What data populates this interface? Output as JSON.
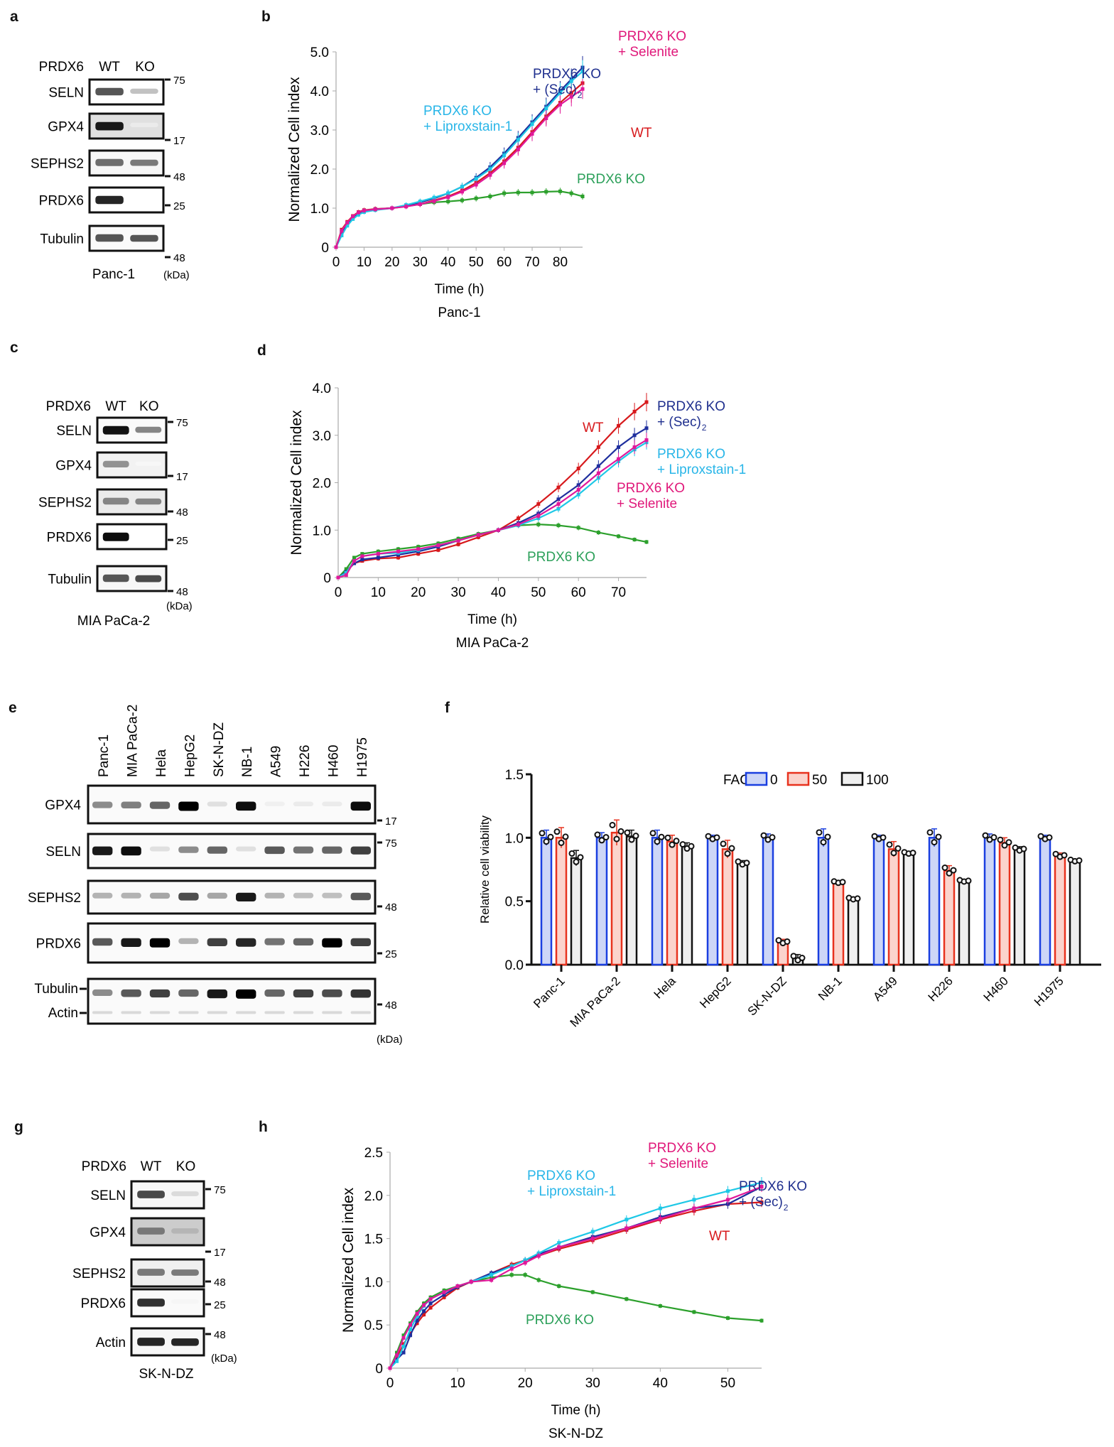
{
  "panels": {
    "a": {
      "letter": "a",
      "header_label": "PRDX6",
      "lanes": [
        "WT",
        "KO"
      ],
      "rows": [
        {
          "label": "SELN",
          "mw": "75",
          "wt": 0.7,
          "ko": 0.25,
          "bg": 0.0
        },
        {
          "label": "GPX4",
          "mw": "17",
          "wt": 0.95,
          "ko": 0.08,
          "bg": 0.12
        },
        {
          "label": "SEPHS2",
          "mw": "48",
          "wt": 0.6,
          "ko": 0.55,
          "bg": 0.03
        },
        {
          "label": "PRDX6",
          "mw": "25",
          "wt": 0.9,
          "ko": 0.0,
          "bg": 0.0
        },
        {
          "label": "Tubulin",
          "mw": "48",
          "wt": 0.7,
          "ko": 0.7,
          "bg": 0.02
        }
      ],
      "cell_line": "Panc-1",
      "unit": "(kDa)"
    },
    "c": {
      "letter": "c",
      "header_label": "PRDX6",
      "lanes": [
        "WT",
        "KO"
      ],
      "rows": [
        {
          "label": "SELN",
          "mw": "75",
          "wt": 0.98,
          "ko": 0.5,
          "bg": 0.02
        },
        {
          "label": "GPX4",
          "mw": "17",
          "wt": 0.45,
          "ko": 0.03,
          "bg": 0.05
        },
        {
          "label": "SEPHS2",
          "mw": "48",
          "wt": 0.5,
          "ko": 0.5,
          "bg": 0.08
        },
        {
          "label": "PRDX6",
          "mw": "25",
          "wt": 1.0,
          "ko": 0.0,
          "bg": 0.0
        },
        {
          "label": "Tubulin",
          "mw": "48",
          "wt": 0.7,
          "ko": 0.75,
          "bg": 0.03
        }
      ],
      "cell_line": "MIA PaCa-2",
      "unit": "(kDa)"
    },
    "e": {
      "letter": "e",
      "lanes": [
        "Panc-1",
        "MIA PaCa-2",
        "Hela",
        "HepG2",
        "SK-N-DZ",
        "NB-1",
        "A549",
        "H226",
        "H460",
        "H1975"
      ],
      "rows": [
        {
          "label": "GPX4",
          "mw": "17",
          "intensities": [
            0.45,
            0.5,
            0.6,
            1.0,
            0.12,
            0.95,
            0.06,
            0.08,
            0.08,
            0.95
          ]
        },
        {
          "label": "SELN",
          "mw": "75",
          "intensities": [
            0.9,
            0.95,
            0.12,
            0.45,
            0.6,
            0.12,
            0.65,
            0.55,
            0.6,
            0.75
          ]
        },
        {
          "label": "SEPHS2",
          "mw": "48",
          "intensities": [
            0.3,
            0.3,
            0.35,
            0.7,
            0.35,
            0.9,
            0.3,
            0.25,
            0.25,
            0.65
          ]
        },
        {
          "label": "PRDX6",
          "mw": "25",
          "intensities": [
            0.65,
            0.9,
            1.0,
            0.3,
            0.75,
            0.85,
            0.55,
            0.6,
            1.0,
            0.75
          ]
        },
        {
          "label": "Tubulin",
          "mw": "48",
          "label2": "Actin",
          "intensities": [
            0.45,
            0.65,
            0.75,
            0.6,
            0.9,
            1.0,
            0.6,
            0.75,
            0.7,
            0.8
          ]
        }
      ],
      "unit": "(kDa)"
    },
    "g": {
      "letter": "g",
      "header_label": "PRDX6",
      "lanes": [
        "WT",
        "KO"
      ],
      "rows": [
        {
          "label": "SELN",
          "mw": "75",
          "wt": 0.75,
          "ko": 0.15,
          "bg": 0.03
        },
        {
          "label": "GPX4",
          "mw": "17",
          "wt": 0.55,
          "ko": 0.3,
          "bg": 0.2
        },
        {
          "label": "SEPHS2",
          "mw": "48",
          "wt": 0.55,
          "ko": 0.55,
          "bg": 0.06
        },
        {
          "label": "PRDX6",
          "mw": "25",
          "wt": 0.85,
          "ko": 0.04,
          "bg": 0.02
        },
        {
          "label": "Actin",
          "mw": "48",
          "wt": 0.9,
          "ko": 0.9,
          "bg": 0.03
        }
      ],
      "cell_line": "SK-N-DZ",
      "unit": "(kDa)"
    },
    "b_letter": "b",
    "d_letter": "d",
    "f_letter": "f",
    "h_letter": "h"
  },
  "chart_data": [
    {
      "id": "b",
      "type": "line",
      "title": "Panc-1",
      "xlabel": "Time (h)",
      "ylabel": "Normalized Cell index",
      "xlim": [
        0,
        88
      ],
      "ylim": [
        0,
        5.0
      ],
      "xticks": [
        0,
        10,
        20,
        30,
        40,
        50,
        60,
        70,
        80
      ],
      "yticks": [
        0,
        1.0,
        2.0,
        3.0,
        4.0,
        5.0
      ],
      "ytick_labels": [
        "0",
        "1.0",
        "2.0",
        "3.0",
        "4.0",
        "5.0"
      ],
      "x": [
        0,
        2,
        4,
        6,
        8,
        10,
        14,
        20,
        25,
        30,
        35,
        40,
        45,
        50,
        55,
        60,
        65,
        70,
        75,
        80,
        84,
        88
      ],
      "series": [
        {
          "name": "WT",
          "color": "#d7191c",
          "values": [
            0,
            0.45,
            0.65,
            0.8,
            0.9,
            0.95,
            0.98,
            1.0,
            1.05,
            1.1,
            1.2,
            1.3,
            1.45,
            1.65,
            1.9,
            2.2,
            2.55,
            2.95,
            3.35,
            3.7,
            3.95,
            4.2
          ]
        },
        {
          "name": "PRDX6 KO",
          "color": "#2ca02c",
          "values": [
            0,
            0.4,
            0.62,
            0.78,
            0.88,
            0.94,
            0.97,
            1.0,
            1.05,
            1.1,
            1.15,
            1.17,
            1.2,
            1.25,
            1.3,
            1.38,
            1.4,
            1.4,
            1.42,
            1.43,
            1.38,
            1.3
          ]
        },
        {
          "name": "PRDX6 KO + (Sec)2",
          "color": "#1f2f9e",
          "values": [
            0,
            0.38,
            0.6,
            0.77,
            0.87,
            0.93,
            0.97,
            1.0,
            1.07,
            1.15,
            1.25,
            1.38,
            1.55,
            1.78,
            2.05,
            2.4,
            2.8,
            3.2,
            3.6,
            4.0,
            4.3,
            4.6
          ]
        },
        {
          "name": "PRDX6 KO + Liproxstain-1",
          "color": "#1ec8e6",
          "values": [
            0,
            0.3,
            0.55,
            0.72,
            0.83,
            0.9,
            0.95,
            1.0,
            1.08,
            1.17,
            1.27,
            1.38,
            1.55,
            1.75,
            2.0,
            2.35,
            2.75,
            3.15,
            3.55,
            3.95,
            4.25,
            4.5
          ]
        },
        {
          "name": "PRDX6 KO + Selenite",
          "color": "#e0189a",
          "values": [
            0,
            0.42,
            0.63,
            0.79,
            0.89,
            0.94,
            0.97,
            1.0,
            1.04,
            1.1,
            1.18,
            1.28,
            1.42,
            1.6,
            1.85,
            2.15,
            2.5,
            2.9,
            3.3,
            3.65,
            3.85,
            4.05
          ]
        }
      ],
      "annotations": [
        {
          "text": "PRDX6 KO",
          "text2": "+ Selenite",
          "color": "#e0187a"
        },
        {
          "text": "PRDX6 KO",
          "text2": "+ (Sec)",
          "sub": "2",
          "color": "#1f2f8e"
        },
        {
          "text": "PRDX6 KO",
          "text2": "+ Liproxstain-1",
          "color": "#29b6e8"
        },
        {
          "text": "WT",
          "color": "#d7191c"
        },
        {
          "text": "PRDX6 KO",
          "color": "#2ca05a"
        }
      ]
    },
    {
      "id": "d",
      "type": "line",
      "title": "MIA PaCa-2",
      "xlabel": "Time (h)",
      "ylabel": "Normalized Cell index",
      "xlim": [
        0,
        77
      ],
      "ylim": [
        0,
        4.0
      ],
      "xticks": [
        0,
        10,
        20,
        30,
        40,
        50,
        60,
        70
      ],
      "yticks": [
        0,
        1.0,
        2.0,
        3.0,
        4.0
      ],
      "ytick_labels": [
        "0",
        "1.0",
        "2.0",
        "3.0",
        "4.0"
      ],
      "x": [
        0,
        2,
        4,
        6,
        10,
        15,
        20,
        25,
        30,
        35,
        40,
        45,
        50,
        55,
        60,
        65,
        70,
        74,
        77
      ],
      "series": [
        {
          "name": "WT",
          "color": "#d7191c",
          "values": [
            0,
            0.15,
            0.3,
            0.35,
            0.4,
            0.42,
            0.5,
            0.58,
            0.7,
            0.85,
            1.0,
            1.25,
            1.55,
            1.9,
            2.3,
            2.75,
            3.2,
            3.5,
            3.7
          ]
        },
        {
          "name": "PRDX6 KO",
          "color": "#2ca02c",
          "values": [
            0,
            0.18,
            0.42,
            0.5,
            0.55,
            0.6,
            0.65,
            0.72,
            0.82,
            0.92,
            1.0,
            1.1,
            1.12,
            1.1,
            1.05,
            0.95,
            0.87,
            0.8,
            0.75
          ]
        },
        {
          "name": "PRDX6 KO + (Sec)2",
          "color": "#1f2f9e",
          "values": [
            0,
            0.12,
            0.3,
            0.38,
            0.42,
            0.48,
            0.55,
            0.65,
            0.78,
            0.9,
            1.0,
            1.15,
            1.35,
            1.65,
            1.95,
            2.35,
            2.75,
            3.0,
            3.15
          ]
        },
        {
          "name": "PRDX6 KO + Liproxstain-1",
          "color": "#1ec8e6",
          "values": [
            0,
            0.1,
            0.35,
            0.45,
            0.5,
            0.52,
            0.58,
            0.68,
            0.78,
            0.9,
            1.0,
            1.1,
            1.25,
            1.45,
            1.75,
            2.1,
            2.45,
            2.7,
            2.85
          ]
        },
        {
          "name": "PRDX6 KO + Selenite",
          "color": "#e0189a",
          "values": [
            0,
            0.05,
            0.35,
            0.45,
            0.5,
            0.55,
            0.6,
            0.68,
            0.78,
            0.9,
            1.0,
            1.12,
            1.3,
            1.55,
            1.85,
            2.2,
            2.5,
            2.75,
            2.9
          ]
        }
      ],
      "annotations": [
        {
          "text": "WT",
          "color": "#d7191c"
        },
        {
          "text": "PRDX6 KO",
          "text2": "+ (Sec)",
          "sub": "2",
          "color": "#1f2f8e"
        },
        {
          "text": "PRDX6 KO",
          "text2": "+ Liproxstain-1",
          "color": "#29b6e8"
        },
        {
          "text": "PRDX6 KO",
          "text2": "+ Selenite",
          "color": "#e0187a"
        },
        {
          "text": "PRDX6 KO",
          "color": "#2ca05a"
        }
      ]
    },
    {
      "id": "f",
      "type": "bar",
      "title": "",
      "xlabel": "",
      "ylabel": "Relative cell viability",
      "ylim": [
        0,
        1.5
      ],
      "yticks": [
        0.0,
        0.5,
        1.0,
        1.5
      ],
      "ytick_labels": [
        "0.0",
        "0.5",
        "1.0",
        "1.5"
      ],
      "legend_title": "FAC",
      "legend_position": "top-right",
      "categories": [
        "Panc-1",
        "MIA PaCa-2",
        "Hela",
        "HepG2",
        "SK-N-DZ",
        "NB-1",
        "A549",
        "H226",
        "H460",
        "H1975"
      ],
      "series": [
        {
          "name": "0",
          "stroke": "#1a3fe0",
          "fill": "#cdd6f7",
          "values": [
            1.0,
            1.0,
            1.0,
            1.0,
            1.0,
            1.0,
            1.0,
            1.0,
            1.0,
            1.0
          ],
          "errors": [
            0.06,
            0.04,
            0.06,
            0.02,
            0.03,
            0.07,
            0.02,
            0.07,
            0.03,
            0.02
          ]
        },
        {
          "name": "50",
          "stroke": "#e8321e",
          "fill": "#fbd3cc",
          "values": [
            1.0,
            1.04,
            0.97,
            0.91,
            0.18,
            0.65,
            0.91,
            0.74,
            0.96,
            0.86
          ],
          "errors": [
            0.08,
            0.1,
            0.05,
            0.07,
            0.02,
            0.01,
            0.06,
            0.04,
            0.04,
            0.02
          ]
        },
        {
          "name": "100",
          "stroke": "#111111",
          "fill": "#efefef",
          "values": [
            0.84,
            1.01,
            0.93,
            0.8,
            0.05,
            0.52,
            0.88,
            0.66,
            0.91,
            0.82
          ],
          "errors": [
            0.06,
            0.05,
            0.03,
            0.02,
            0.03,
            0.01,
            0.01,
            0.01,
            0.02,
            0.01
          ]
        }
      ]
    },
    {
      "id": "h",
      "type": "line",
      "title": "SK-N-DZ",
      "xlabel": "Time (h)",
      "ylabel": "Normalized Cell index",
      "xlim": [
        0,
        55
      ],
      "ylim": [
        0,
        2.5
      ],
      "xticks": [
        0,
        10,
        20,
        30,
        40,
        50
      ],
      "yticks": [
        0,
        0.5,
        1.0,
        1.5,
        2.0,
        2.5
      ],
      "ytick_labels": [
        "0",
        "0.5",
        "1.0",
        "1.5",
        "2.0",
        "2.5"
      ],
      "x": [
        0,
        1,
        2,
        3,
        4,
        5,
        6,
        8,
        10,
        12,
        15,
        18,
        20,
        22,
        25,
        30,
        35,
        40,
        45,
        50,
        55
      ],
      "series": [
        {
          "name": "WT",
          "color": "#d7191c",
          "values": [
            0,
            0.12,
            0.28,
            0.4,
            0.52,
            0.62,
            0.7,
            0.82,
            0.93,
            1.0,
            1.1,
            1.2,
            1.25,
            1.3,
            1.38,
            1.48,
            1.6,
            1.72,
            1.82,
            1.9,
            1.92
          ]
        },
        {
          "name": "PRDX6 KO",
          "color": "#2ca02c",
          "values": [
            0,
            0.18,
            0.38,
            0.52,
            0.65,
            0.75,
            0.82,
            0.9,
            0.95,
            1.0,
            1.05,
            1.08,
            1.08,
            1.02,
            0.95,
            0.88,
            0.8,
            0.72,
            0.65,
            0.58,
            0.55
          ]
        },
        {
          "name": "PRDX6 KO + (Sec)2",
          "color": "#1f2f9e",
          "values": [
            0,
            0.1,
            0.18,
            0.38,
            0.55,
            0.66,
            0.75,
            0.85,
            0.94,
            1.0,
            1.1,
            1.18,
            1.25,
            1.32,
            1.4,
            1.52,
            1.62,
            1.75,
            1.85,
            1.9,
            2.1
          ]
        },
        {
          "name": "PRDX6 KO + Liproxstain-1",
          "color": "#1ec8e6",
          "values": [
            0,
            0.08,
            0.25,
            0.45,
            0.6,
            0.72,
            0.8,
            0.88,
            0.95,
            1.0,
            1.08,
            1.18,
            1.25,
            1.33,
            1.45,
            1.58,
            1.72,
            1.85,
            1.95,
            2.05,
            2.15
          ]
        },
        {
          "name": "PRDX6 KO + Selenite",
          "color": "#e0189a",
          "values": [
            0,
            0.15,
            0.35,
            0.5,
            0.63,
            0.73,
            0.8,
            0.88,
            0.95,
            1.0,
            1.02,
            1.15,
            1.22,
            1.3,
            1.4,
            1.5,
            1.62,
            1.73,
            1.85,
            1.95,
            2.1
          ]
        }
      ],
      "annotations": [
        {
          "text": "PRDX6 KO",
          "text2": "+ Selenite",
          "color": "#e0187a"
        },
        {
          "text": "PRDX6 KO",
          "text2": "+ Liproxstain-1",
          "color": "#29b6e8"
        },
        {
          "text": "PRDX6 KO",
          "text2": "+ (Sec)",
          "sub": "2",
          "color": "#1f2f8e"
        },
        {
          "text": "WT",
          "color": "#d7191c"
        },
        {
          "text": "PRDX6 KO",
          "color": "#2ca05a"
        }
      ]
    }
  ]
}
